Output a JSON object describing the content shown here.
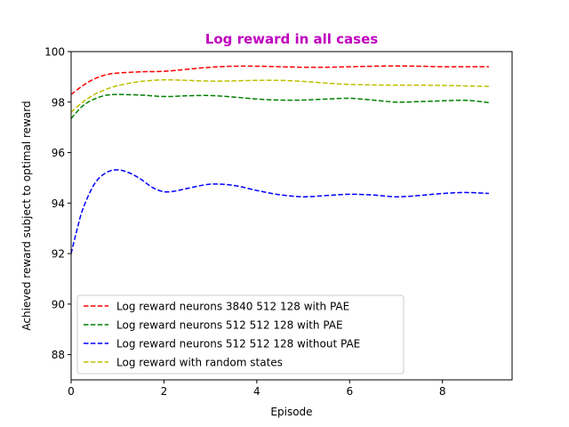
{
  "chart_data": {
    "type": "line",
    "title": "Log reward in all cases",
    "title_color": "#bf00bf",
    "xlabel": "Episode",
    "ylabel": "Achieved reward subject to optimal reward",
    "xlim": [
      0,
      9.5
    ],
    "ylim": [
      87,
      100
    ],
    "xticks": [
      "0",
      "2",
      "4",
      "6",
      "8"
    ],
    "xtick_values": [
      0,
      2,
      4,
      6,
      8
    ],
    "yticks": [
      "88",
      "90",
      "92",
      "94",
      "96",
      "98",
      "100"
    ],
    "ytick_values": [
      88,
      90,
      92,
      94,
      96,
      98,
      100
    ],
    "grid": false,
    "legend_position": "lower-left",
    "line_style": "dashed",
    "series": [
      {
        "name": "Log reward neurons 3840 512 128 with PAE",
        "color": "#ff0000",
        "x": [
          0,
          0.25,
          0.5,
          0.75,
          1,
          1.5,
          2,
          2.5,
          3,
          3.5,
          4,
          4.5,
          5,
          5.5,
          6,
          6.5,
          7,
          7.5,
          8,
          8.5,
          9
        ],
        "y": [
          98.3,
          98.65,
          98.92,
          99.08,
          99.15,
          99.2,
          99.22,
          99.3,
          99.38,
          99.42,
          99.42,
          99.4,
          99.38,
          99.38,
          99.4,
          99.42,
          99.43,
          99.42,
          99.4,
          99.4,
          99.4
        ]
      },
      {
        "name": "Log reward neurons 512 512 128 with PAE",
        "color": "#008000",
        "x": [
          0,
          0.25,
          0.5,
          0.75,
          1,
          1.5,
          2,
          2.5,
          3,
          3.5,
          4,
          4.5,
          5,
          5.5,
          6,
          6.5,
          7,
          7.5,
          8,
          8.5,
          9
        ],
        "y": [
          97.35,
          97.85,
          98.12,
          98.27,
          98.3,
          98.28,
          98.22,
          98.25,
          98.26,
          98.2,
          98.12,
          98.08,
          98.08,
          98.12,
          98.15,
          98.08,
          98.0,
          98.02,
          98.05,
          98.07,
          97.98
        ]
      },
      {
        "name": "Log reward neurons 512 512 128 without PAE",
        "color": "#0000ff",
        "x": [
          0,
          0.1,
          0.25,
          0.5,
          0.75,
          1,
          1.25,
          1.5,
          1.75,
          2,
          2.25,
          2.5,
          3,
          3.5,
          4,
          4.5,
          5,
          5.5,
          6,
          6.5,
          7,
          7.5,
          8,
          8.5,
          9
        ],
        "y": [
          92.0,
          92.75,
          93.75,
          94.75,
          95.2,
          95.32,
          95.2,
          94.95,
          94.62,
          94.45,
          94.48,
          94.58,
          94.75,
          94.7,
          94.5,
          94.33,
          94.25,
          94.3,
          94.35,
          94.32,
          94.25,
          94.3,
          94.38,
          94.42,
          94.38
        ]
      },
      {
        "name": "Log reward with random states",
        "color": "#bfbf00",
        "x": [
          0,
          0.25,
          0.5,
          0.75,
          1,
          1.5,
          2,
          2.5,
          3,
          3.5,
          4,
          4.5,
          5,
          5.5,
          6,
          6.5,
          7,
          7.5,
          8,
          8.5,
          9
        ],
        "y": [
          97.6,
          98.0,
          98.3,
          98.5,
          98.65,
          98.82,
          98.88,
          98.86,
          98.83,
          98.84,
          98.86,
          98.86,
          98.82,
          98.75,
          98.7,
          98.68,
          98.67,
          98.67,
          98.66,
          98.64,
          98.62
        ]
      }
    ]
  }
}
